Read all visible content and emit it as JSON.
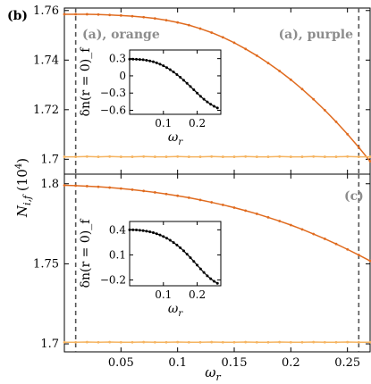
{
  "colors": {
    "orange_dark": "#e06b1f",
    "orange_light": "#f5b461",
    "inset_line": "#000000",
    "annotation_gray": "#8c8c8c",
    "vline_gray": "#555555"
  },
  "ylabel": "N_{i,f} (10^4)",
  "xlabel": "ω_r",
  "panels": [
    {
      "tag": "(b)",
      "annotations": [
        "(a), orange",
        "(a), purple"
      ],
      "xlim": [
        0,
        0.27
      ],
      "ylim": [
        1.694,
        1.761
      ],
      "yticks": [
        "1.7",
        "1.72",
        "1.74",
        "1.76"
      ],
      "ytick_values": [
        1.7,
        1.72,
        1.74,
        1.76
      ],
      "show_xticklabels": false
    },
    {
      "tag": "(c)",
      "annotations": [],
      "xlim": [
        0,
        0.27
      ],
      "ylim": [
        1.695,
        1.806
      ],
      "yticks": [
        "1.7",
        "1.75",
        "1.8"
      ],
      "ytick_values": [
        1.7,
        1.75,
        1.8
      ],
      "show_xticklabels": true
    }
  ],
  "xticks": [
    "0.05",
    "0.1",
    "0.15",
    "0.2",
    "0.25"
  ],
  "xtick_values": [
    0.05,
    0.1,
    0.15,
    0.2,
    0.25
  ],
  "vlines": [
    0.01,
    0.26
  ],
  "insets": [
    {
      "ylabel": "δn(r = 0)_f",
      "xlabel": "ω_r",
      "xticks": [
        "0.1",
        "0.2"
      ],
      "xtick_values": [
        0.1,
        0.2
      ],
      "yticks": [
        "0.3",
        "0",
        "−0.3",
        "−0.6"
      ],
      "ytick_values": [
        0.3,
        0.0,
        -0.3,
        -0.6
      ],
      "xlim": [
        0,
        0.27
      ],
      "ylim": [
        -0.67,
        0.45
      ]
    },
    {
      "ylabel": "δn(r = 0)_f",
      "xlabel": "ω_r",
      "xticks": [
        "0.1",
        "0.2"
      ],
      "xtick_values": [
        0.1,
        0.2
      ],
      "yticks": [
        "0.4",
        "0.1",
        "−0.2"
      ],
      "ytick_values": [
        0.4,
        0.1,
        -0.2
      ],
      "xlim": [
        0,
        0.27
      ],
      "ylim": [
        -0.27,
        0.5
      ]
    }
  ],
  "chart_data": [
    {
      "type": "line",
      "panel": "(b)",
      "x": [
        0.0,
        0.01,
        0.02,
        0.03,
        0.04,
        0.05,
        0.06,
        0.07,
        0.08,
        0.09,
        0.1,
        0.11,
        0.12,
        0.13,
        0.14,
        0.15,
        0.16,
        0.17,
        0.18,
        0.19,
        0.2,
        0.21,
        0.22,
        0.23,
        0.24,
        0.25,
        0.26,
        0.27
      ],
      "series": [
        {
          "color": "#e06b1f",
          "values": [
            1.7585,
            1.7585,
            1.7585,
            1.7584,
            1.7582,
            1.758,
            1.7577,
            1.7573,
            1.7568,
            1.7561,
            1.7552,
            1.7541,
            1.7527,
            1.7511,
            1.7492,
            1.747,
            1.7445,
            1.7418,
            1.7388,
            1.7356,
            1.7321,
            1.7283,
            1.7242,
            1.7198,
            1.7151,
            1.7101,
            1.7048,
            1.6992
          ]
        },
        {
          "color": "#f5b461",
          "values": [
            1.701,
            1.701,
            1.7011,
            1.701,
            1.7011,
            1.701,
            1.701,
            1.7011,
            1.701,
            1.701,
            1.7011,
            1.701,
            1.701,
            1.7011,
            1.701,
            1.701,
            1.7011,
            1.701,
            1.701,
            1.7011,
            1.701,
            1.701,
            1.7011,
            1.701,
            1.701,
            1.7011,
            1.701,
            1.701
          ]
        }
      ],
      "xlim": [
        0,
        0.27
      ],
      "ylim": [
        1.694,
        1.761
      ],
      "xlabel": "",
      "ylabel": ""
    },
    {
      "type": "line",
      "panel": "(c)",
      "x": [
        0.0,
        0.01,
        0.02,
        0.03,
        0.04,
        0.05,
        0.06,
        0.07,
        0.08,
        0.09,
        0.1,
        0.11,
        0.12,
        0.13,
        0.14,
        0.15,
        0.16,
        0.17,
        0.18,
        0.19,
        0.2,
        0.21,
        0.22,
        0.23,
        0.24,
        0.25,
        0.26,
        0.27
      ],
      "series": [
        {
          "color": "#e06b1f",
          "values": [
            1.799,
            1.7988,
            1.7985,
            1.7981,
            1.7976,
            1.797,
            1.7963,
            1.7955,
            1.7946,
            1.7936,
            1.7925,
            1.7913,
            1.7899,
            1.7884,
            1.7868,
            1.7851,
            1.7832,
            1.7812,
            1.779,
            1.7767,
            1.7742,
            1.7715,
            1.7686,
            1.7656,
            1.7624,
            1.759,
            1.7555,
            1.7518
          ]
        },
        {
          "color": "#f5b461",
          "values": [
            1.701,
            1.701,
            1.7011,
            1.701,
            1.7011,
            1.701,
            1.701,
            1.7011,
            1.701,
            1.701,
            1.7011,
            1.701,
            1.701,
            1.7011,
            1.701,
            1.701,
            1.7011,
            1.701,
            1.701,
            1.7011,
            1.701,
            1.701,
            1.7011,
            1.701,
            1.701,
            1.7011,
            1.701,
            1.701
          ]
        }
      ],
      "xlim": [
        0,
        0.27
      ],
      "ylim": [
        1.695,
        1.806
      ],
      "xlabel": "ω_r",
      "ylabel": ""
    },
    {
      "type": "line",
      "panel": "(b) inset",
      "x": [
        0.0,
        0.01,
        0.02,
        0.03,
        0.04,
        0.05,
        0.06,
        0.07,
        0.08,
        0.09,
        0.1,
        0.11,
        0.12,
        0.13,
        0.14,
        0.15,
        0.16,
        0.17,
        0.18,
        0.19,
        0.2,
        0.21,
        0.22,
        0.23,
        0.24,
        0.25,
        0.26
      ],
      "series": [
        {
          "color": "#000000",
          "values": [
            0.29,
            0.29,
            0.288,
            0.285,
            0.28,
            0.272,
            0.26,
            0.245,
            0.226,
            0.203,
            0.175,
            0.143,
            0.107,
            0.067,
            0.023,
            -0.025,
            -0.076,
            -0.13,
            -0.186,
            -0.243,
            -0.3,
            -0.356,
            -0.408,
            -0.455,
            -0.495,
            -0.53,
            -0.56
          ]
        }
      ],
      "xlim": [
        0,
        0.27
      ],
      "ylim": [
        -0.67,
        0.45
      ],
      "xlabel": "ω_r",
      "ylabel": "δn(r = 0)_f"
    },
    {
      "type": "line",
      "panel": "(c) inset",
      "x": [
        0.0,
        0.01,
        0.02,
        0.03,
        0.04,
        0.05,
        0.06,
        0.07,
        0.08,
        0.09,
        0.1,
        0.11,
        0.12,
        0.13,
        0.14,
        0.15,
        0.16,
        0.17,
        0.18,
        0.19,
        0.2,
        0.21,
        0.22,
        0.23,
        0.24,
        0.25,
        0.26
      ],
      "series": [
        {
          "color": "#000000",
          "values": [
            0.4,
            0.4,
            0.398,
            0.395,
            0.39,
            0.384,
            0.376,
            0.366,
            0.353,
            0.338,
            0.32,
            0.299,
            0.275,
            0.248,
            0.218,
            0.185,
            0.148,
            0.108,
            0.066,
            0.022,
            -0.023,
            -0.068,
            -0.111,
            -0.151,
            -0.186,
            -0.216,
            -0.24
          ]
        }
      ],
      "xlim": [
        0,
        0.27
      ],
      "ylim": [
        -0.27,
        0.5
      ],
      "xlabel": "ω_r",
      "ylabel": "δn(r = 0)_f"
    }
  ]
}
